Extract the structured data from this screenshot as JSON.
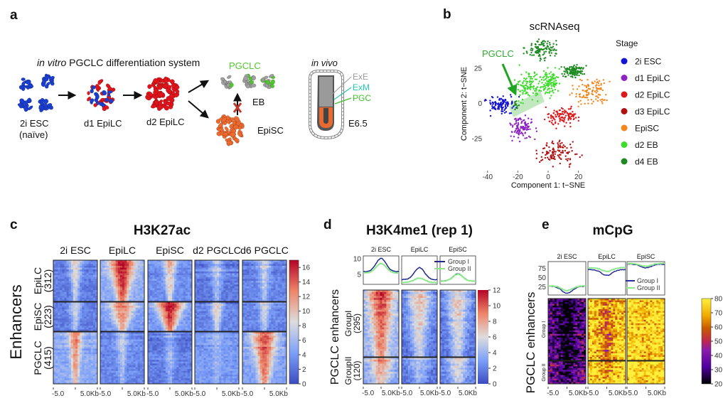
{
  "panel_labels": [
    "a",
    "b",
    "c",
    "d",
    "e"
  ],
  "panel_a": {
    "title_italic": "in vitro",
    "title_rest": " PGCLC differentiation system",
    "stages": [
      {
        "label": "2i ESC",
        "sublabel": "(naïve)"
      },
      {
        "label": "d1 EpiLC"
      },
      {
        "label": "d2 EpiLC"
      }
    ],
    "pgclc_label": "PGCLC",
    "eb_label": "EB",
    "episc_label": "EpiSC",
    "in_vivo_label": "in vivo",
    "embryo_labels": {
      "exe": "ExE",
      "exm": "ExM",
      "pgc": "PGC",
      "stage": "E6.5"
    },
    "colors": {
      "esc": "#1a3fd1",
      "epilc": "#e0141a",
      "episc": "#ee6a2e",
      "eb": "#a0a0a0",
      "pgclc": "#4fc92a",
      "exm": "#22c9b4",
      "blocked": "#c0392b"
    }
  },
  "chart_data": [
    {
      "panel": "b",
      "type": "scatter",
      "title": "scRNAseq",
      "xlabel": "Component 1: t−SNE",
      "ylabel": "Component 2: t−SNE",
      "xticks": [
        "-40",
        "-20",
        "0",
        "20"
      ],
      "yticks": [
        "25",
        "0",
        "-25"
      ],
      "xlim": [
        -46,
        30
      ],
      "ylim": [
        -45,
        48
      ],
      "legend_title": "Stage",
      "legend_position": "right",
      "annotation": "PGCLC",
      "series": [
        {
          "name": "2i ESC",
          "color": "#1414d2",
          "clusters": [
            {
              "center": [
                -31,
                -1
              ],
              "spread": [
                6,
                3.5
              ]
            }
          ]
        },
        {
          "name": "d1 EpiLC",
          "color": "#8e24c0",
          "clusters": [
            {
              "center": [
                -18,
                -17
              ],
              "spread": [
                5,
                5
              ]
            }
          ]
        },
        {
          "name": "d2 EpiLC",
          "color": "#dd1818",
          "clusters": [
            {
              "center": [
                9,
                -9
              ],
              "spread": [
                7,
                4
              ]
            }
          ]
        },
        {
          "name": "d3 EpiLC",
          "color": "#b01010",
          "clusters": [
            {
              "center": [
                6,
                -35
              ],
              "spread": [
                8,
                5
              ]
            }
          ]
        },
        {
          "name": "EpiSC",
          "color": "#f2871e",
          "clusters": [
            {
              "center": [
                28,
                9
              ],
              "spread": [
                7,
                6
              ]
            }
          ]
        },
        {
          "name": "d2 EB",
          "color": "#3ddc2a",
          "clusters": [
            {
              "center": [
                -13,
                13
              ],
              "spread": [
                5,
                6
              ]
            },
            {
              "center": [
                1,
                15
              ],
              "spread": [
                4,
                5
              ]
            }
          ]
        },
        {
          "name": "d4 EB",
          "color": "#1f8a22",
          "clusters": [
            {
              "center": [
                -4,
                39
              ],
              "spread": [
                6,
                4
              ]
            },
            {
              "center": [
                16,
                23
              ],
              "spread": [
                4,
                2.5
              ]
            },
            {
              "center": [
                -21,
                -1
              ],
              "spread": [
                1.5,
                2
              ]
            }
          ]
        }
      ]
    },
    {
      "panel": "c",
      "type": "heatmap",
      "title": "H3K27ac",
      "columns": [
        "2i ESC",
        "EpiLC",
        "EpiSC",
        "d2 PGCLC",
        "d6 PGCLC"
      ],
      "row_axis_label": "Enhancers",
      "row_groups": [
        {
          "name": "EpiLC",
          "count": "(312)",
          "peak": [
            9,
            17,
            11,
            7,
            8
          ],
          "background": [
            2.5,
            5,
            3.5,
            2.5,
            3
          ]
        },
        {
          "name": "EpiSC",
          "count": "(223)",
          "peak": [
            8,
            13,
            17,
            10,
            8
          ],
          "background": [
            2.5,
            4,
            4,
            3,
            3
          ]
        },
        {
          "name": "PGCLC",
          "count": "(415)",
          "peak": [
            13,
            7,
            6,
            6,
            15
          ],
          "background": [
            5,
            3,
            2.5,
            4,
            4.5
          ]
        }
      ],
      "xticks": [
        "-5.0",
        "5.0Kb"
      ],
      "colorbar": {
        "min": 0,
        "max": 17,
        "ticks": [
          "0",
          "2",
          "4",
          "6",
          "8",
          "10",
          "12",
          "14",
          "16"
        ],
        "colormap": "coolwarm"
      }
    },
    {
      "panel": "d",
      "type": "heatmap",
      "title": "H3K4me1 (rep 1)",
      "columns": [
        "2i ESC",
        "EpiLC",
        "EpiSC"
      ],
      "row_axis_label": "PGCLC enhancers",
      "row_groups": [
        {
          "name": "GroupI",
          "count": "(295)",
          "peak": [
            11,
            7.5,
            7
          ],
          "background": [
            4,
            1.5,
            1.5
          ]
        },
        {
          "name": "GroupII",
          "count": "(120)",
          "peak": [
            9,
            5,
            6.5
          ],
          "background": [
            3.5,
            1.5,
            2
          ]
        }
      ],
      "xticks": [
        "-5.0",
        "5.0Kb"
      ],
      "colorbar": {
        "min": 0,
        "max": 12,
        "ticks": [
          "0",
          "2",
          "4",
          "6",
          "8",
          "10",
          "12"
        ],
        "colormap": "coolwarm"
      },
      "profile": {
        "yticks": [
          "5",
          "10"
        ],
        "ylim": [
          2,
          11
        ],
        "series": [
          {
            "name": "Group I",
            "color": "#1f2a8a",
            "edge": [
              6,
              3.5,
              3
            ],
            "center": [
              10.2,
              7.3,
              5.3
            ]
          },
          {
            "name": "Group II",
            "color": "#8be88b",
            "edge": [
              5.6,
              2.6,
              3
            ],
            "center": [
              8.6,
              4,
              5.2
            ]
          }
        ]
      }
    },
    {
      "panel": "e",
      "type": "heatmap",
      "title": "mCpG",
      "columns": [
        "2i ESC",
        "EpiLC",
        "EpiSC"
      ],
      "row_axis_label": "PGCLC enhancers",
      "row_groups": [
        {
          "name": "Group I",
          "center": [
            18,
            60,
            74
          ],
          "background": [
            34,
            74,
            80
          ]
        },
        {
          "name": "Group II",
          "center": [
            22,
            66,
            76
          ],
          "background": [
            36,
            76,
            80
          ]
        }
      ],
      "xticks": [
        "-5.0",
        "5.0Kb"
      ],
      "colorbar": {
        "min": 20,
        "max": 80,
        "ticks": [
          "20",
          "30",
          "40",
          "50",
          "60",
          "70",
          "80"
        ],
        "colormap": "gnuplot"
      },
      "profile": {
        "yticks": [
          "25",
          "50",
          "75"
        ],
        "ylim": [
          3,
          95
        ],
        "series": [
          {
            "name": "Group I",
            "color": "#2a2f9a",
            "edge": [
              27,
              73,
              88
            ],
            "center": [
              8,
              57,
              78
            ]
          },
          {
            "name": "Group II",
            "color": "#8be88b",
            "edge": [
              28,
              78,
              90
            ],
            "center": [
              15,
              68,
              82
            ]
          }
        ]
      }
    }
  ]
}
